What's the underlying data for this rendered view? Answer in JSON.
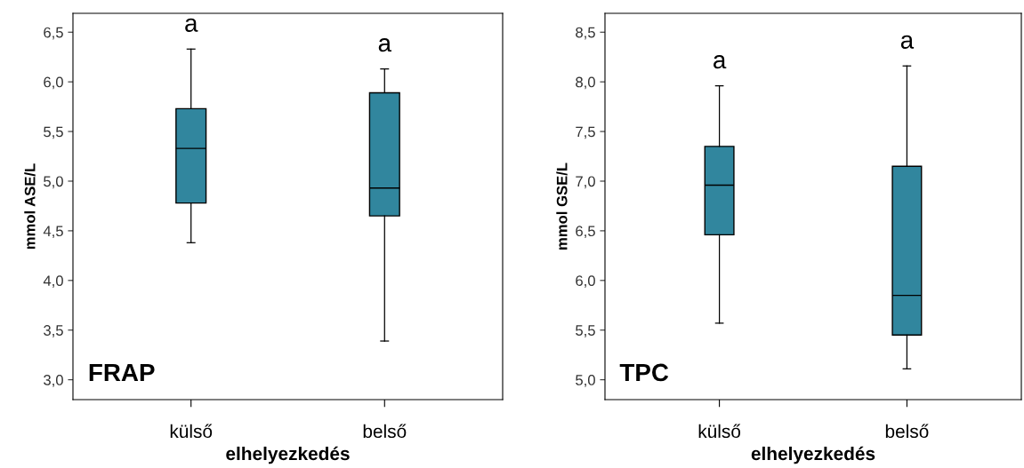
{
  "chart_data": [
    {
      "type": "box",
      "title": "FRAP",
      "xlabel": "elhelyezkedés",
      "ylabel": "mmol ASE/L",
      "categories": [
        "külső",
        "belső"
      ],
      "color": "#31869e",
      "boxes": [
        {
          "low": 4.38,
          "q1": 4.78,
          "median": 5.33,
          "q3": 5.73,
          "high": 6.33
        },
        {
          "low": 3.39,
          "q1": 4.65,
          "median": 4.93,
          "q3": 5.89,
          "high": 6.13
        }
      ],
      "ylim": [
        2.8,
        6.69
      ],
      "yticks": [
        {
          "value": 3.0,
          "label": "3,0"
        },
        {
          "value": 3.5,
          "label": "3,5"
        },
        {
          "value": 4.0,
          "label": "4,0"
        },
        {
          "value": 4.5,
          "label": "4,5"
        },
        {
          "value": 5.0,
          "label": "5,0"
        },
        {
          "value": 5.5,
          "label": "5,5"
        },
        {
          "value": 6.0,
          "label": "6,0"
        },
        {
          "value": 6.5,
          "label": "6,5"
        }
      ],
      "annotations": [
        "a",
        "a"
      ],
      "grid": false,
      "legend": false
    },
    {
      "type": "box",
      "title": "TPC",
      "xlabel": "elhelyezkedés",
      "ylabel": "mmol GSE/L",
      "categories": [
        "külső",
        "belső"
      ],
      "color": "#31869e",
      "boxes": [
        {
          "low": 5.57,
          "q1": 6.46,
          "median": 6.96,
          "q3": 7.35,
          "high": 7.96
        },
        {
          "low": 5.11,
          "q1": 5.45,
          "median": 5.85,
          "q3": 7.15,
          "high": 8.16
        }
      ],
      "ylim": [
        4.8,
        8.69
      ],
      "yticks": [
        {
          "value": 5.0,
          "label": "5,0"
        },
        {
          "value": 5.5,
          "label": "5,5"
        },
        {
          "value": 6.0,
          "label": "6,0"
        },
        {
          "value": 6.5,
          "label": "6,5"
        },
        {
          "value": 7.0,
          "label": "7,0"
        },
        {
          "value": 7.5,
          "label": "7,5"
        },
        {
          "value": 8.0,
          "label": "8,0"
        },
        {
          "value": 8.5,
          "label": "8,5"
        }
      ],
      "annotations": [
        "a",
        "a"
      ],
      "grid": false,
      "legend": false
    }
  ]
}
